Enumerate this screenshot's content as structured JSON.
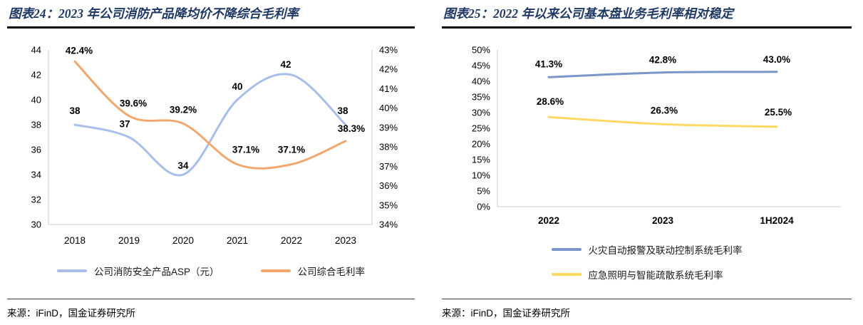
{
  "figures": {
    "fig24": {
      "title": "图表24：2023 年公司消防产品降均价不降综合毛利率",
      "source": "来源：iFinD，国金证券研究所"
    },
    "fig25": {
      "title": "图表25：2022 年以来公司基本盘业务毛利率相对稳定",
      "source": "来源：iFinD，国金证券研究所"
    }
  },
  "chart_data": [
    {
      "target": "chart24",
      "type": "line",
      "title": "2023年公司消防产品降均价不降综合毛利率",
      "categories": [
        "2018",
        "2019",
        "2020",
        "2021",
        "2022",
        "2023"
      ],
      "grid": false,
      "legend_position": "bottom",
      "axes": {
        "left": {
          "min": 30,
          "max": 44,
          "step": 2,
          "suffix": ""
        },
        "right": {
          "min": 34,
          "max": 43,
          "step": 1,
          "suffix": "%"
        }
      },
      "series": [
        {
          "name": "公司消防安全产品ASP（元）",
          "axis": "left",
          "color": "#A9BEE9",
          "values": [
            38,
            37,
            34,
            40,
            42,
            38
          ],
          "labels": [
            "38",
            "37",
            "34",
            "40",
            "42",
            "38"
          ],
          "label_dx": [
            0,
            -6,
            0,
            0,
            -8,
            -4
          ],
          "label_dy": [
            -15,
            -14,
            -8,
            -14,
            -10,
            -15
          ]
        },
        {
          "name": "公司综合毛利率",
          "axis": "right",
          "color": "#F2A76F",
          "values": [
            42.4,
            39.6,
            39.2,
            37.1,
            37.1,
            38.3
          ],
          "labels": [
            "42.4%",
            "39.6%",
            "39.2%",
            "37.1%",
            "37.1%",
            "38.3%"
          ],
          "label_dx": [
            6,
            6,
            0,
            12,
            0,
            8
          ],
          "label_dy": [
            -11,
            -13,
            -15,
            -16,
            -16,
            -13
          ]
        }
      ]
    },
    {
      "target": "chart25",
      "type": "line",
      "title": "2022年以来公司基本盘业务毛利率相对稳定",
      "categories": [
        "2022",
        "2023",
        "1H2024"
      ],
      "grid": false,
      "legend_position": "bottom",
      "axes": {
        "left": {
          "min": 0,
          "max": 50,
          "step": 5,
          "suffix": "%"
        }
      },
      "series": [
        {
          "name": "火灾自动报警及联动控制系统毛利率",
          "axis": "left",
          "color": "#7A96C9",
          "values": [
            41.3,
            42.8,
            43.0
          ],
          "labels": [
            "41.3%",
            "42.8%",
            "43.0%"
          ],
          "label_dx": [
            0,
            0,
            0
          ],
          "label_dy": [
            -14,
            -13,
            -13
          ]
        },
        {
          "name": "应急照明与智能疏散系统毛利率",
          "axis": "left",
          "color": "#FFD966",
          "values": [
            28.6,
            26.3,
            25.5
          ],
          "labels": [
            "28.6%",
            "26.3%",
            "25.5%"
          ],
          "label_dx": [
            2,
            2,
            2
          ],
          "label_dy": [
            -17,
            -15,
            -16
          ]
        }
      ]
    }
  ]
}
